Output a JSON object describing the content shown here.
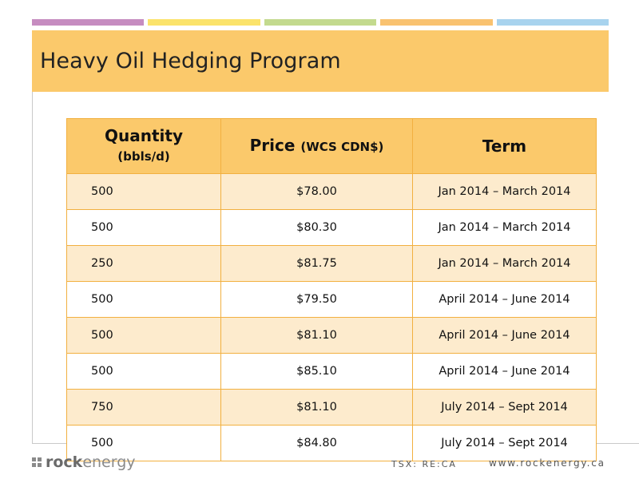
{
  "slide": {
    "title": "Heavy Oil Hedging Program",
    "bar_colors": [
      "#C68CC0",
      "#FBE36B",
      "#C3DA8E",
      "#F9C270",
      "#A8D3EE"
    ],
    "accent_color": "#FBC96B"
  },
  "table": {
    "headers": {
      "quantity": "Quantity",
      "quantity_unit": "(bbls/d)",
      "price": "Price",
      "price_unit": "(WCS CDN$)",
      "term": "Term"
    },
    "rows": [
      {
        "quantity": "500",
        "price": "$78.00",
        "term": "Jan 2014 – March 2014"
      },
      {
        "quantity": "500",
        "price": "$80.30",
        "term": "Jan 2014 – March 2014"
      },
      {
        "quantity": "250",
        "price": "$81.75",
        "term": "Jan 2014 – March 2014"
      },
      {
        "quantity": "500",
        "price": "$79.50",
        "term": "April 2014 – June 2014"
      },
      {
        "quantity": "500",
        "price": "$81.10",
        "term": "April 2014 – June 2014"
      },
      {
        "quantity": "500",
        "price": "$85.10",
        "term": "April 2014 – June 2014"
      },
      {
        "quantity": "750",
        "price": "$81.10",
        "term": "July 2014 – Sept 2014"
      },
      {
        "quantity": "500",
        "price": "$84.80",
        "term": "July 2014 – Sept 2014"
      }
    ]
  },
  "footer": {
    "logo_rock": "rock",
    "logo_energy": "energy",
    "ticker": "TSX: RE:CA",
    "website": "www.rockenergy.ca"
  }
}
